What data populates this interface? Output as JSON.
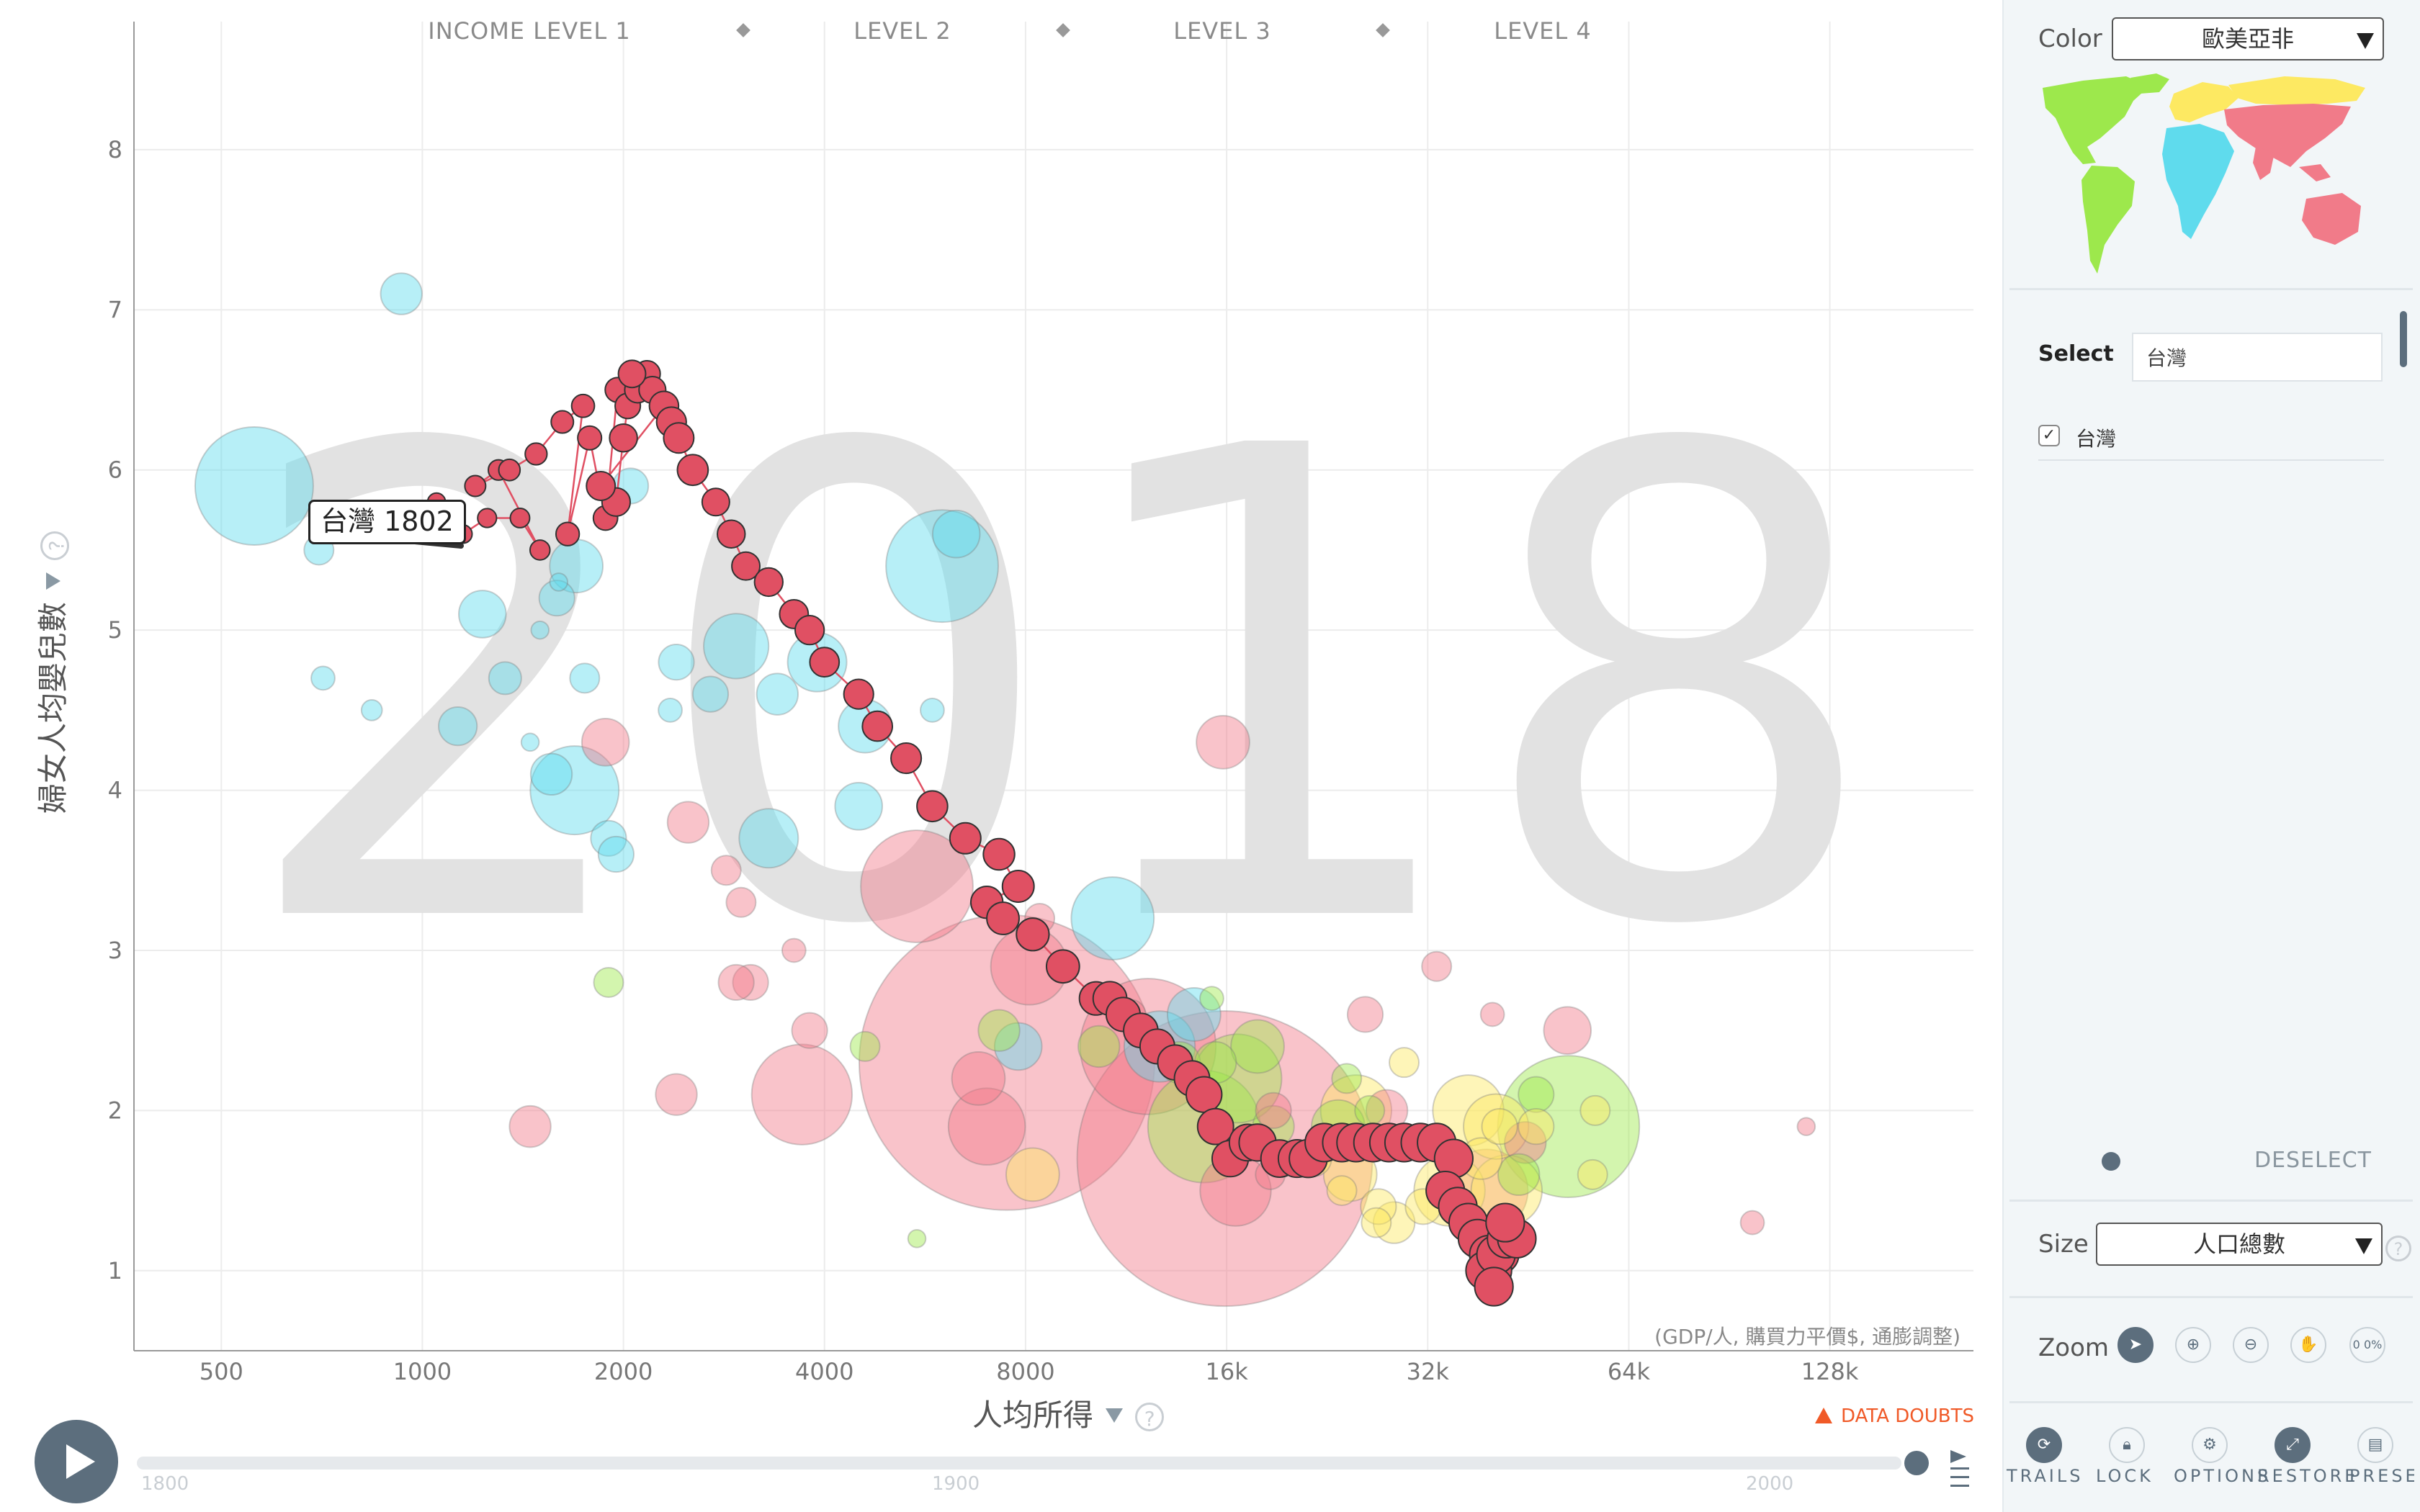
{
  "year": "2018",
  "income_levels": [
    "INCOME LEVEL 1",
    "LEVEL 2",
    "LEVEL 3",
    "LEVEL 4"
  ],
  "y_axis": {
    "title": "婦女人均嬰兒數",
    "ticks": [
      1,
      2,
      3,
      4,
      5,
      6,
      7,
      8
    ],
    "range": [
      0.5,
      8.8
    ]
  },
  "x_axis": {
    "title": "人均所得",
    "unit_note": "(GDP/人, 購買力平價$, 通膨調整)",
    "ticks": [
      500,
      1000,
      2000,
      4000,
      8000,
      16000,
      32000,
      64000,
      128000
    ],
    "tick_labels": [
      "500",
      "1000",
      "2000",
      "4000",
      "8000",
      "16k",
      "32k",
      "64k",
      "128k"
    ],
    "scale": "log",
    "range": [
      370,
      210000
    ]
  },
  "trail_label": "台灣 1802",
  "data_doubts": "DATA DOUBTS",
  "timeline": {
    "labels": [
      "1800",
      "1900",
      "2000"
    ],
    "start": 1800,
    "end": 2018,
    "current": 2018
  },
  "colors": {
    "americas": "#9de84c",
    "europe": "#fde962",
    "africa": "#5fdbed",
    "asia": "#f17b89",
    "trail": "#e05063"
  },
  "chart_data": {
    "type": "scatter",
    "x_label": "人均所得",
    "y_label": "婦女人均嬰兒數",
    "x_scale": "log",
    "xlim": [
      370,
      210000
    ],
    "ylim": [
      0.5,
      8.8
    ],
    "selected": "台灣",
    "trail_points": [
      [
        750,
        5.7
      ],
      [
        880,
        5.6
      ],
      [
        1000,
        5.6
      ],
      [
        1050,
        5.8
      ],
      [
        1150,
        5.6
      ],
      [
        1250,
        5.7
      ],
      [
        1400,
        5.7
      ],
      [
        1500,
        5.5
      ],
      [
        1300,
        6.0
      ],
      [
        1200,
        5.9
      ],
      [
        1350,
        6.0
      ],
      [
        1480,
        6.1
      ],
      [
        1620,
        6.3
      ],
      [
        1740,
        6.4
      ],
      [
        1650,
        5.6
      ],
      [
        1780,
        6.2
      ],
      [
        1880,
        5.7
      ],
      [
        1960,
        6.5
      ],
      [
        2030,
        6.4
      ],
      [
        2100,
        6.5
      ],
      [
        2170,
        6.6
      ],
      [
        2210,
        6.5
      ],
      [
        2060,
        6.6
      ],
      [
        2000,
        6.2
      ],
      [
        1950,
        5.8
      ],
      [
        1850,
        5.9
      ],
      [
        2300,
        6.4
      ],
      [
        2360,
        6.3
      ],
      [
        2420,
        6.2
      ],
      [
        2540,
        6.0
      ],
      [
        2750,
        5.8
      ],
      [
        2900,
        5.6
      ],
      [
        3050,
        5.4
      ],
      [
        3300,
        5.3
      ],
      [
        3600,
        5.1
      ],
      [
        3800,
        5.0
      ],
      [
        4000,
        4.8
      ],
      [
        4500,
        4.6
      ],
      [
        4800,
        4.4
      ],
      [
        5300,
        4.2
      ],
      [
        5800,
        3.9
      ],
      [
        6500,
        3.7
      ],
      [
        7300,
        3.6
      ],
      [
        7800,
        3.4
      ],
      [
        7000,
        3.3
      ],
      [
        7400,
        3.2
      ],
      [
        8200,
        3.1
      ],
      [
        9100,
        2.9
      ],
      [
        10200,
        2.7
      ],
      [
        10700,
        2.7
      ],
      [
        11200,
        2.6
      ],
      [
        11900,
        2.5
      ],
      [
        12600,
        2.4
      ],
      [
        13400,
        2.3
      ],
      [
        14200,
        2.2
      ],
      [
        14800,
        2.1
      ],
      [
        15400,
        1.9
      ],
      [
        16200,
        1.7
      ],
      [
        17200,
        1.8
      ],
      [
        17800,
        1.8
      ],
      [
        19200,
        1.7
      ],
      [
        20400,
        1.7
      ],
      [
        21200,
        1.7
      ],
      [
        22400,
        1.8
      ],
      [
        23800,
        1.8
      ],
      [
        25000,
        1.8
      ],
      [
        26500,
        1.8
      ],
      [
        28000,
        1.8
      ],
      [
        29500,
        1.8
      ],
      [
        31200,
        1.8
      ],
      [
        33000,
        1.8
      ],
      [
        35000,
        1.7
      ],
      [
        34000,
        1.5
      ],
      [
        35500,
        1.4
      ],
      [
        36800,
        1.3
      ],
      [
        38000,
        1.2
      ],
      [
        39500,
        1.1
      ],
      [
        41000,
        1.1
      ],
      [
        40000,
        1.0
      ],
      [
        39000,
        1.0
      ],
      [
        40500,
        1.1
      ],
      [
        42000,
        1.2
      ],
      [
        43500,
        1.2
      ],
      [
        41800,
        1.3
      ],
      [
        40200,
        0.9
      ]
    ],
    "background_bubbles": [
      [
        930,
        7.1,
        14,
        "africa"
      ],
      [
        560,
        5.9,
        40,
        "africa"
      ],
      [
        700,
        5.5,
        10,
        "africa"
      ],
      [
        710,
        4.7,
        8,
        "africa"
      ],
      [
        840,
        4.5,
        7,
        "africa"
      ],
      [
        1130,
        4.4,
        13,
        "africa"
      ],
      [
        1230,
        5.1,
        16,
        "africa"
      ],
      [
        1330,
        4.7,
        11,
        "africa"
      ],
      [
        1560,
        4.1,
        14,
        "africa"
      ],
      [
        1690,
        4.0,
        30,
        "africa"
      ],
      [
        1590,
        5.2,
        12,
        "africa"
      ],
      [
        1700,
        5.4,
        18,
        "africa"
      ],
      [
        1750,
        4.7,
        10,
        "africa"
      ],
      [
        1900,
        3.7,
        12,
        "africa"
      ],
      [
        1950,
        3.6,
        12,
        "africa"
      ],
      [
        2050,
        5.9,
        12,
        "africa"
      ],
      [
        2400,
        4.8,
        12,
        "africa"
      ],
      [
        2700,
        4.6,
        12,
        "africa"
      ],
      [
        2950,
        4.9,
        22,
        "africa"
      ],
      [
        3400,
        4.6,
        14,
        "africa"
      ],
      [
        3300,
        3.7,
        20,
        "africa"
      ],
      [
        3900,
        4.8,
        20,
        "africa"
      ],
      [
        4600,
        4.4,
        18,
        "africa"
      ],
      [
        4500,
        3.9,
        16,
        "africa"
      ],
      [
        6000,
        5.4,
        38,
        "africa"
      ],
      [
        6300,
        5.6,
        16,
        "africa"
      ],
      [
        10800,
        3.2,
        28,
        "africa"
      ],
      [
        14300,
        2.6,
        18,
        "africa"
      ],
      [
        7800,
        2.4,
        16,
        "africa"
      ],
      [
        12700,
        2.4,
        24,
        "africa"
      ],
      [
        5800,
        4.5,
        8,
        "africa"
      ],
      [
        2350,
        4.5,
        8,
        "africa"
      ],
      [
        1500,
        5.0,
        6,
        "africa"
      ],
      [
        1450,
        4.3,
        6,
        "africa"
      ],
      [
        1600,
        5.3,
        6,
        "africa"
      ],
      [
        1880,
        4.3,
        16,
        "asia"
      ],
      [
        2500,
        3.8,
        14,
        "asia"
      ],
      [
        2850,
        3.5,
        10,
        "asia"
      ],
      [
        3000,
        3.3,
        10,
        "asia"
      ],
      [
        5500,
        3.4,
        38,
        "asia"
      ],
      [
        7500,
        2.3,
        100,
        "asia"
      ],
      [
        6800,
        2.2,
        18,
        "asia"
      ],
      [
        7000,
        1.9,
        26,
        "asia"
      ],
      [
        8100,
        2.9,
        26,
        "asia"
      ],
      [
        8400,
        3.2,
        10,
        "asia"
      ],
      [
        3700,
        2.1,
        34,
        "asia"
      ],
      [
        2400,
        2.1,
        14,
        "asia"
      ],
      [
        1450,
        1.9,
        14,
        "asia"
      ],
      [
        3800,
        2.5,
        12,
        "asia"
      ],
      [
        3100,
        2.8,
        12,
        "asia"
      ],
      [
        2950,
        2.8,
        12,
        "asia"
      ],
      [
        12200,
        2.4,
        46,
        "asia"
      ],
      [
        15800,
        4.3,
        18,
        "asia"
      ],
      [
        15900,
        1.7,
        100,
        "asia"
      ],
      [
        16500,
        1.5,
        24,
        "asia"
      ],
      [
        11500,
        2.6,
        10,
        "asia"
      ],
      [
        18600,
        1.6,
        10,
        "asia"
      ],
      [
        25800,
        2.6,
        12,
        "asia"
      ],
      [
        27800,
        2.0,
        14,
        "asia"
      ],
      [
        33000,
        2.9,
        10,
        "asia"
      ],
      [
        39200,
        1.5,
        28,
        "asia"
      ],
      [
        51800,
        2.5,
        16,
        "asia"
      ],
      [
        44800,
        1.8,
        14,
        "asia"
      ],
      [
        40000,
        2.6,
        8,
        "asia"
      ],
      [
        3600,
        3.0,
        8,
        "asia"
      ],
      [
        98000,
        1.3,
        8,
        "asia"
      ],
      [
        118000,
        1.9,
        6,
        "asia"
      ],
      [
        18800,
        2.0,
        12,
        "asia"
      ],
      [
        1900,
        2.8,
        10,
        "americas"
      ],
      [
        4600,
        2.4,
        10,
        "americas"
      ],
      [
        7300,
        2.5,
        14,
        "americas"
      ],
      [
        10300,
        2.4,
        14,
        "americas"
      ],
      [
        13600,
        2.3,
        14,
        "americas"
      ],
      [
        14800,
        1.9,
        38,
        "americas"
      ],
      [
        15400,
        2.3,
        14,
        "americas"
      ],
      [
        16600,
        2.2,
        30,
        "americas"
      ],
      [
        17800,
        2.4,
        18,
        "americas"
      ],
      [
        18800,
        1.9,
        14,
        "americas"
      ],
      [
        20400,
        1.7,
        12,
        "americas"
      ],
      [
        23500,
        1.9,
        18,
        "americas"
      ],
      [
        24200,
        2.2,
        10,
        "americas"
      ],
      [
        43800,
        1.6,
        14,
        "americas"
      ],
      [
        52000,
        1.9,
        48,
        "americas"
      ],
      [
        46500,
        2.1,
        12,
        "americas"
      ],
      [
        15200,
        2.7,
        8,
        "americas"
      ],
      [
        26200,
        2.0,
        10,
        "americas"
      ],
      [
        5500,
        1.2,
        6,
        "americas"
      ],
      [
        8200,
        1.6,
        18,
        "europe"
      ],
      [
        25000,
        2.0,
        24,
        "europe"
      ],
      [
        24500,
        1.6,
        18,
        "europe"
      ],
      [
        27000,
        1.4,
        12,
        "europe"
      ],
      [
        28500,
        1.3,
        14,
        "europe"
      ],
      [
        34500,
        1.5,
        24,
        "europe"
      ],
      [
        36800,
        2.0,
        24,
        "europe"
      ],
      [
        40500,
        1.9,
        22,
        "europe"
      ],
      [
        42000,
        1.5,
        24,
        "europe"
      ],
      [
        46500,
        1.9,
        12,
        "europe"
      ],
      [
        56500,
        1.6,
        10,
        "europe"
      ],
      [
        57000,
        2.0,
        10,
        "europe"
      ],
      [
        31500,
        1.4,
        12,
        "europe"
      ],
      [
        29500,
        2.3,
        10,
        "europe"
      ],
      [
        26800,
        1.3,
        10,
        "europe"
      ],
      [
        38500,
        1.7,
        14,
        "europe"
      ],
      [
        23800,
        1.5,
        10,
        "europe"
      ],
      [
        21600,
        1.7,
        12,
        "europe"
      ],
      [
        41000,
        1.9,
        12,
        "europe"
      ]
    ]
  },
  "panel": {
    "color_label": "Color",
    "color_value": "歐美亞非",
    "select_label": "Select",
    "select_value": "台灣",
    "selected_item": "台灣",
    "deselect_label": "DESELECT",
    "size_label": "Size",
    "size_value": "人口總數",
    "zoom_label": "Zoom",
    "zoom_percent": "0 0%",
    "dial": [
      "TRAILS",
      "LOCK",
      "OPTIONS",
      "RESTORE",
      "PRESET"
    ]
  }
}
